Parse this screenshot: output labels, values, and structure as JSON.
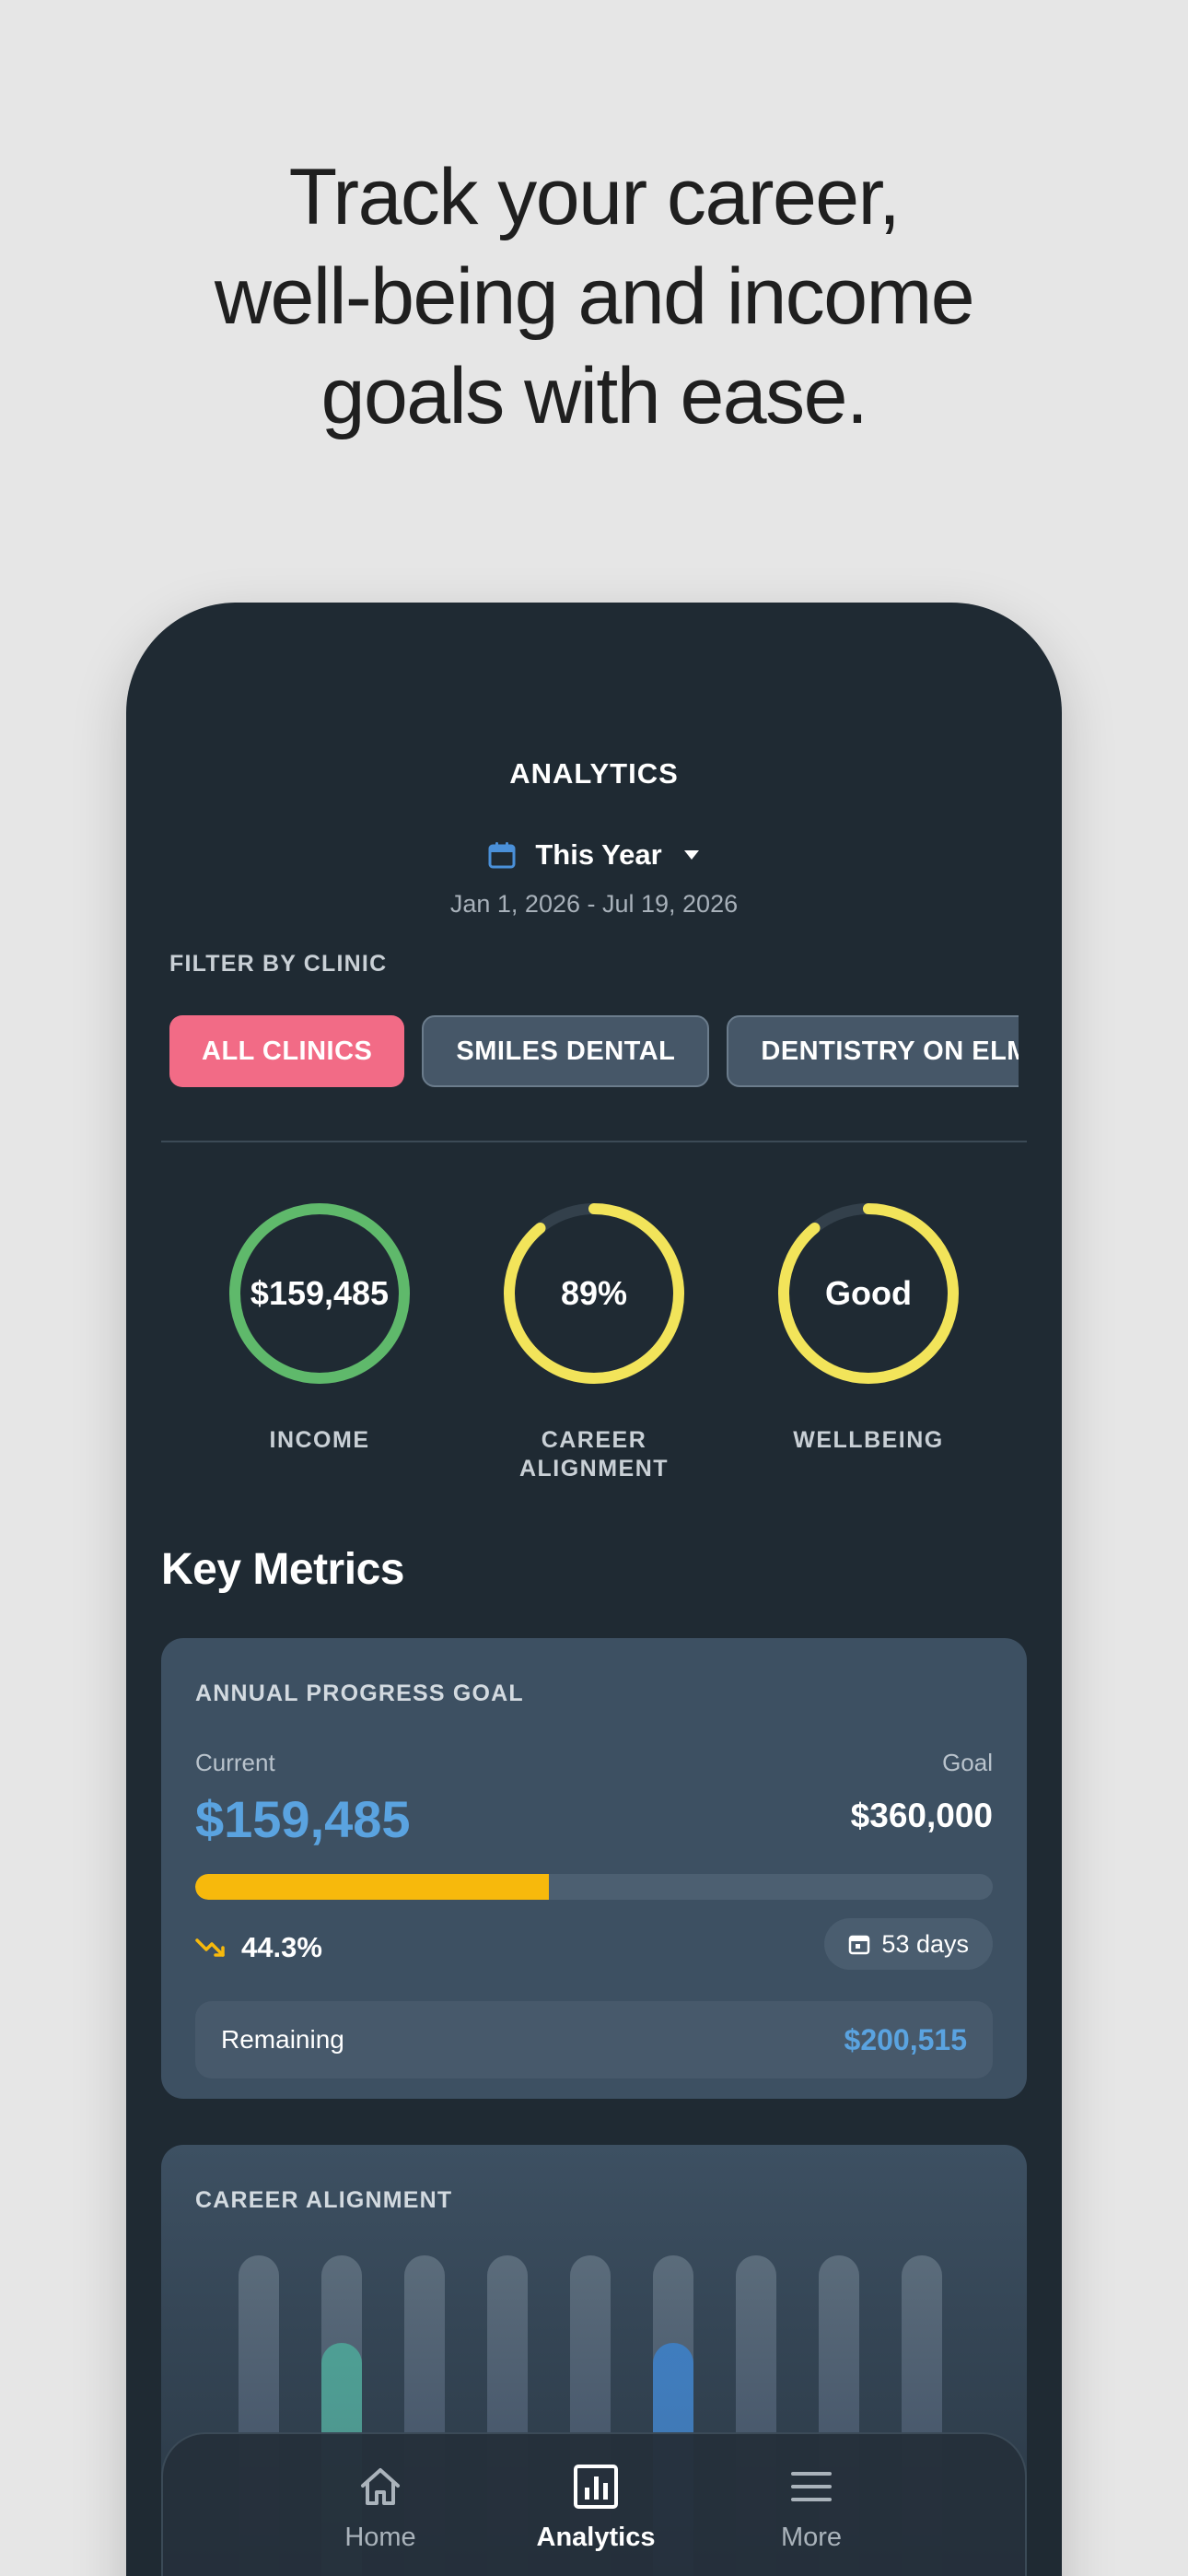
{
  "headline": {
    "line1": "Track your career,",
    "line2": "well-being and income",
    "line3": "goals with ease."
  },
  "header": {
    "title": "ANALYTICS",
    "period_label": "This Year",
    "date_range": "Jan 1, 2026 - Jul 19, 2026",
    "icons": {
      "calendar": "calendar-icon",
      "dropdown": "caret-down-icon"
    }
  },
  "filter": {
    "label": "FILTER BY CLINIC",
    "chips": [
      {
        "label": "ALL CLINICS",
        "active": true
      },
      {
        "label": "SMILES DENTAL",
        "active": false
      },
      {
        "label": "DENTISTRY ON ELM",
        "active": false
      }
    ]
  },
  "summary": {
    "income": {
      "value": "$159,485",
      "label": "INCOME",
      "progress": 1.0,
      "color": "#5fb96b"
    },
    "career": {
      "value": "89%",
      "label_line1": "CAREER",
      "label_line2": "ALIGNMENT",
      "progress": 0.89,
      "color": "#f2e45a"
    },
    "wellbeing": {
      "value": "Good",
      "label": "WELLBEING",
      "progress": 0.89,
      "color": "#f2e45a"
    }
  },
  "key_metrics": {
    "title": "Key Metrics",
    "annual_goal": {
      "title": "ANNUAL PROGRESS GOAL",
      "current_label": "Current",
      "current_value": "$159,485",
      "goal_label": "Goal",
      "goal_value": "$360,000",
      "progress": 0.443,
      "percent_text": "44.3%",
      "days_text": "53 days",
      "remaining_label": "Remaining",
      "remaining_value": "$200,515",
      "colors": {
        "bar": "#f7b90c",
        "accent": "#5aa3e0",
        "trend": "#f7b90c"
      }
    },
    "career_alignment": {
      "title": "CAREER ALIGNMENT",
      "bars": [
        {
          "level": 0.06,
          "color": "#3a8fd1"
        },
        {
          "level": 0.75,
          "color": "#4e9f94"
        },
        {
          "level": 0,
          "color": ""
        },
        {
          "level": 0,
          "color": ""
        },
        {
          "level": 0,
          "color": ""
        },
        {
          "level": 0.75,
          "color": "#3f7dbf"
        },
        {
          "level": 0,
          "color": ""
        },
        {
          "level": 0,
          "color": ""
        },
        {
          "level": 0,
          "color": ""
        }
      ]
    }
  },
  "tabbar": {
    "tabs": [
      {
        "label": "Home",
        "icon": "home-icon",
        "active": false
      },
      {
        "label": "Analytics",
        "icon": "analytics-icon",
        "active": true
      },
      {
        "label": "More",
        "icon": "menu-icon",
        "active": false
      }
    ]
  }
}
